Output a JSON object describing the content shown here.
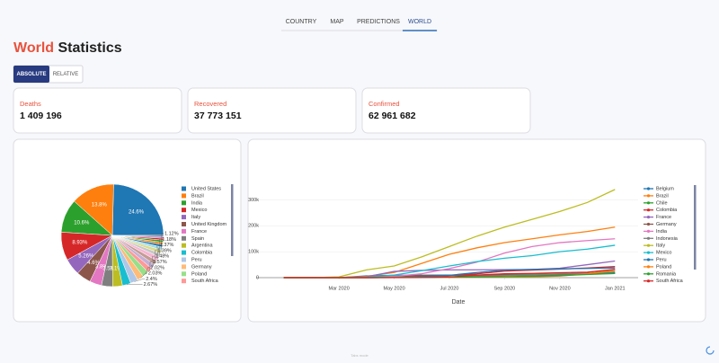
{
  "nav": {
    "items": [
      "COUNTRY",
      "MAP",
      "PREDICTIONS",
      "WORLD"
    ],
    "active": 3
  },
  "title": {
    "highlight": "World",
    "rest": "Statistics"
  },
  "toggle": {
    "items": [
      "ABSOLUTE",
      "RELATIVE"
    ],
    "active": 0
  },
  "cards": [
    {
      "label": "Deaths",
      "value": "1 409 196"
    },
    {
      "label": "Recovered",
      "value": "37 773 151"
    },
    {
      "label": "Confirmed",
      "value": "62 961 682"
    }
  ],
  "pie_chart": {
    "type": "pie",
    "labels": [
      "United States",
      "Brazil",
      "India",
      "Mexico",
      "Italy",
      "United Kingdom",
      "France",
      "Spain",
      "Argentina",
      "Colombia",
      "Peru",
      "Germany",
      "Poland",
      "South Africa",
      null,
      null,
      null,
      null,
      null,
      null,
      null,
      null,
      null,
      null,
      null,
      null
    ],
    "values": [
      24.6,
      13.8,
      10.6,
      8.93,
      5.26,
      4.6,
      3.8,
      3.5,
      3.1,
      2.67,
      2.4,
      2.03,
      2.02,
      1.57,
      1.48,
      1.39,
      1.37,
      1.18,
      1.12,
      0.9,
      0.8,
      0.7,
      0.7,
      0.6,
      0.5,
      0.38
    ],
    "value_labels": [
      "24.6%",
      "13.8%",
      "10.6%",
      "8.93%",
      "5.26%",
      "4.6%",
      "3.8%",
      "3.5%",
      "3.1%",
      "2.67%",
      "2.4%",
      "2.03%",
      "2.02%",
      "1.57%",
      "1.48%",
      "1.39%",
      "1.37%",
      "1.18%",
      "1.12%",
      null,
      null,
      null,
      null,
      null,
      null,
      null
    ],
    "colors": [
      "#1f77b4",
      "#ff7f0e",
      "#2ca02c",
      "#d62728",
      "#9467bd",
      "#8c564b",
      "#e377c2",
      "#7f7f7f",
      "#bcbd22",
      "#17becf",
      "#aec7e8",
      "#ffbb78",
      "#98df8a",
      "#ff9896",
      "#c5b0d5",
      "#c49c94",
      "#f7b6d2",
      "#c7c7c7",
      "#dbdb8d",
      "#9edae5",
      "#1f77b4",
      "#ff7f0e",
      "#2ca02c",
      "#d62728",
      "#9467bd",
      "#8c564b"
    ]
  },
  "line_chart": {
    "type": "line",
    "x_label": "Date",
    "x": [
      "2020-01",
      "2020-02",
      "2020-03",
      "2020-04",
      "2020-05",
      "2020-06",
      "2020-07",
      "2020-08",
      "2020-09",
      "2020-10",
      "2020-11",
      "2020-12",
      "2021-01"
    ],
    "xlim": [
      "2019-12",
      "2021-02"
    ],
    "xticks": [
      {
        "value": "2020-03",
        "label": "Mar 2020"
      },
      {
        "value": "2020-05",
        "label": "May 2020"
      },
      {
        "value": "2020-07",
        "label": "Jul 2020"
      },
      {
        "value": "2020-09",
        "label": "Sep 2020"
      },
      {
        "value": "2020-11",
        "label": "Nov 2020"
      },
      {
        "value": "2021-01",
        "label": "Jan 2021"
      }
    ],
    "ylim": [
      0,
      350000
    ],
    "yticks": [
      0,
      {
        "value": 100000,
        "label": "100k"
      },
      {
        "value": 200000,
        "label": "200k"
      },
      {
        "value": 300000,
        "label": "300k"
      }
    ],
    "grid": true,
    "series": [
      {
        "name": "Belgium",
        "color": "#1f77b4",
        "values": [
          0,
          0,
          0,
          7000,
          9000,
          9600,
          9800,
          9900,
          10000,
          10500,
          14000,
          17000,
          19000
        ]
      },
      {
        "name": "Brazil",
        "color": "#ff7f0e",
        "values": [
          0,
          0,
          0,
          5000,
          20000,
          55000,
          90000,
          115000,
          135000,
          150000,
          165000,
          178000,
          195000
        ]
      },
      {
        "name": "Chile",
        "color": "#2ca02c",
        "values": [
          0,
          0,
          0,
          200,
          1000,
          5000,
          9000,
          10000,
          12000,
          13000,
          14000,
          15000,
          16000
        ]
      },
      {
        "name": "Colombia",
        "color": "#d62728",
        "values": [
          0,
          0,
          0,
          200,
          800,
          2000,
          8000,
          15000,
          25000,
          29000,
          33000,
          37000,
          43000
        ]
      },
      {
        "name": "France",
        "color": "#9467bd",
        "values": [
          0,
          0,
          0,
          3500,
          24000,
          28000,
          29800,
          30200,
          30600,
          31500,
          36500,
          50000,
          64000
        ]
      },
      {
        "name": "Germany",
        "color": "#8c564b",
        "values": [
          0,
          0,
          0,
          500,
          6500,
          8500,
          9000,
          9200,
          9300,
          9500,
          10500,
          15000,
          30000
        ]
      },
      {
        "name": "India",
        "color": "#e377c2",
        "values": [
          0,
          0,
          0,
          1000,
          5000,
          15000,
          35000,
          60000,
          95000,
          120000,
          135000,
          143000,
          150000
        ]
      },
      {
        "name": "Indonesia",
        "color": "#7f7f7f",
        "values": [
          0,
          0,
          0,
          100,
          800,
          1600,
          3000,
          5000,
          8000,
          11000,
          14000,
          16500,
          22000
        ]
      },
      {
        "name": "Italy",
        "color": "#bcbd22",
        "values": [
          0,
          0,
          3000,
          30000,
          45000,
          80000,
          120000,
          160000,
          195000,
          225000,
          255000,
          290000,
          340000
        ]
      },
      {
        "name": "Mexico",
        "color": "#17becf",
        "values": [
          0,
          0,
          0,
          1500,
          10000,
          27000,
          45000,
          62000,
          75000,
          85000,
          100000,
          110000,
          125000
        ]
      },
      {
        "name": "Peru",
        "color": "#1f77b4",
        "values": [
          0,
          0,
          0,
          100,
          1000,
          4000,
          9000,
          20000,
          29000,
          32000,
          34000,
          35500,
          37500
        ]
      },
      {
        "name": "Poland",
        "color": "#ff7f0e",
        "values": [
          0,
          0,
          0,
          50,
          500,
          1000,
          1500,
          1800,
          2200,
          3000,
          6000,
          15000,
          28000
        ]
      },
      {
        "name": "Romania",
        "color": "#2ca02c",
        "values": [
          0,
          0,
          0,
          100,
          600,
          1100,
          1700,
          2500,
          4000,
          5500,
          8000,
          12000,
          16000
        ]
      },
      {
        "name": "South Africa",
        "color": "#d62728",
        "values": [
          0,
          0,
          0,
          0,
          100,
          500,
          2500,
          10000,
          15000,
          16500,
          19000,
          21000,
          32000
        ]
      }
    ]
  },
  "footer": "Tabs mode"
}
